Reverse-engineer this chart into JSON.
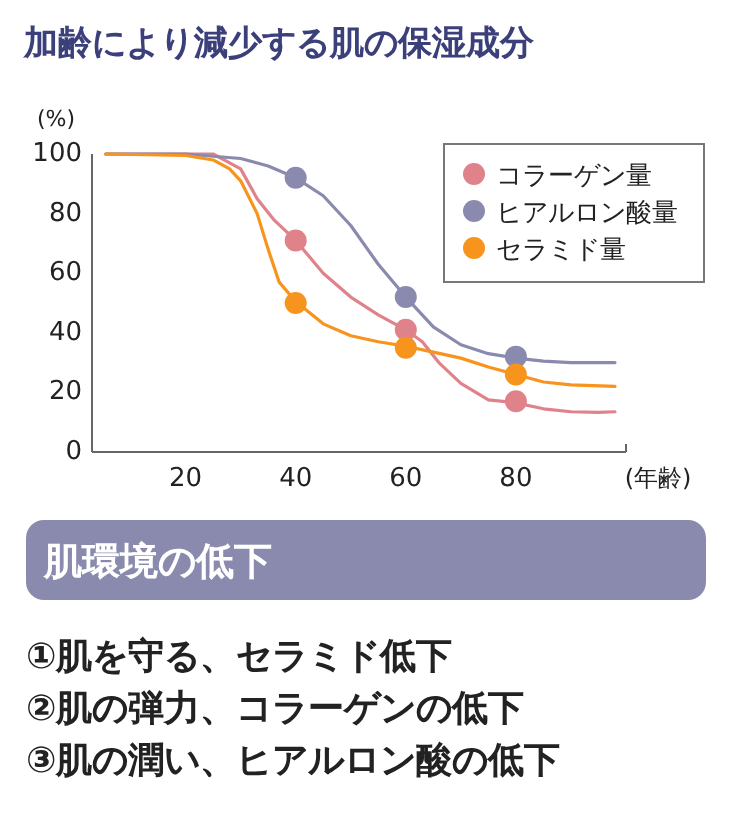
{
  "chart_data": {
    "type": "line",
    "title": "加齢により減少する肌の保湿成分",
    "xlabel": "(年齢)",
    "ylabel": "(%)",
    "xlim": [
      3,
      100
    ],
    "ylim": [
      0,
      100
    ],
    "xticks": [
      20,
      40,
      60,
      80
    ],
    "yticks": [
      0,
      20,
      40,
      60,
      80,
      100
    ],
    "legend": "top right",
    "series": [
      {
        "name": "コラーゲン量",
        "color": "#e0828a",
        "x": [
          5.5,
          20,
          25,
          28,
          30,
          33,
          36,
          40,
          45,
          50,
          55,
          60,
          63,
          66,
          70,
          75,
          80,
          85,
          90,
          95,
          98
        ],
        "values": [
          100,
          100,
          100,
          97,
          95,
          85,
          78,
          71,
          60,
          52,
          46,
          41,
          37,
          30,
          23,
          17.5,
          16.5,
          14.5,
          13.5,
          13.3,
          13.5
        ]
      },
      {
        "name": "ヒアルロン酸量",
        "color": "#8a8aae",
        "x": [
          5.5,
          20,
          30,
          35,
          40,
          45,
          50,
          55,
          60,
          65,
          70,
          75,
          80,
          85,
          90,
          98
        ],
        "values": [
          100,
          100,
          98.5,
          96,
          92,
          86,
          76,
          63,
          52,
          42,
          36,
          33,
          31.5,
          30.5,
          30,
          30
        ]
      },
      {
        "name": "セラミド量",
        "color": "#f7941d",
        "x": [
          5.5,
          20,
          25,
          28,
          30,
          33,
          35,
          37,
          40,
          45,
          50,
          55,
          60,
          65,
          70,
          75,
          80,
          85,
          90,
          98
        ],
        "values": [
          100,
          99.5,
          98,
          95,
          91,
          80,
          68,
          57,
          50.5,
          43,
          39,
          37,
          35.5,
          33.5,
          31.5,
          28.5,
          26,
          23.5,
          22.5,
          22
        ]
      },
      {
        "type": "scatter",
        "marker": "circle",
        "color": "#e0828a",
        "x": [
          40,
          60,
          80
        ],
        "values": [
          71,
          41,
          17
        ]
      },
      {
        "type": "scatter",
        "marker": "circle",
        "color": "#8a8aae",
        "x": [
          40,
          60,
          80
        ],
        "values": [
          92,
          52,
          32
        ]
      },
      {
        "type": "scatter",
        "marker": "circle",
        "color": "#f7941d",
        "x": [
          40,
          60,
          80
        ],
        "values": [
          50,
          35,
          26
        ]
      }
    ],
    "annotations": [
      "肌環境の低下",
      "①肌を守る、セラミド低下",
      "②肌の弾力、コラーゲンの低下",
      "③肌の潤い、ヒアルロン酸の低下"
    ]
  }
}
